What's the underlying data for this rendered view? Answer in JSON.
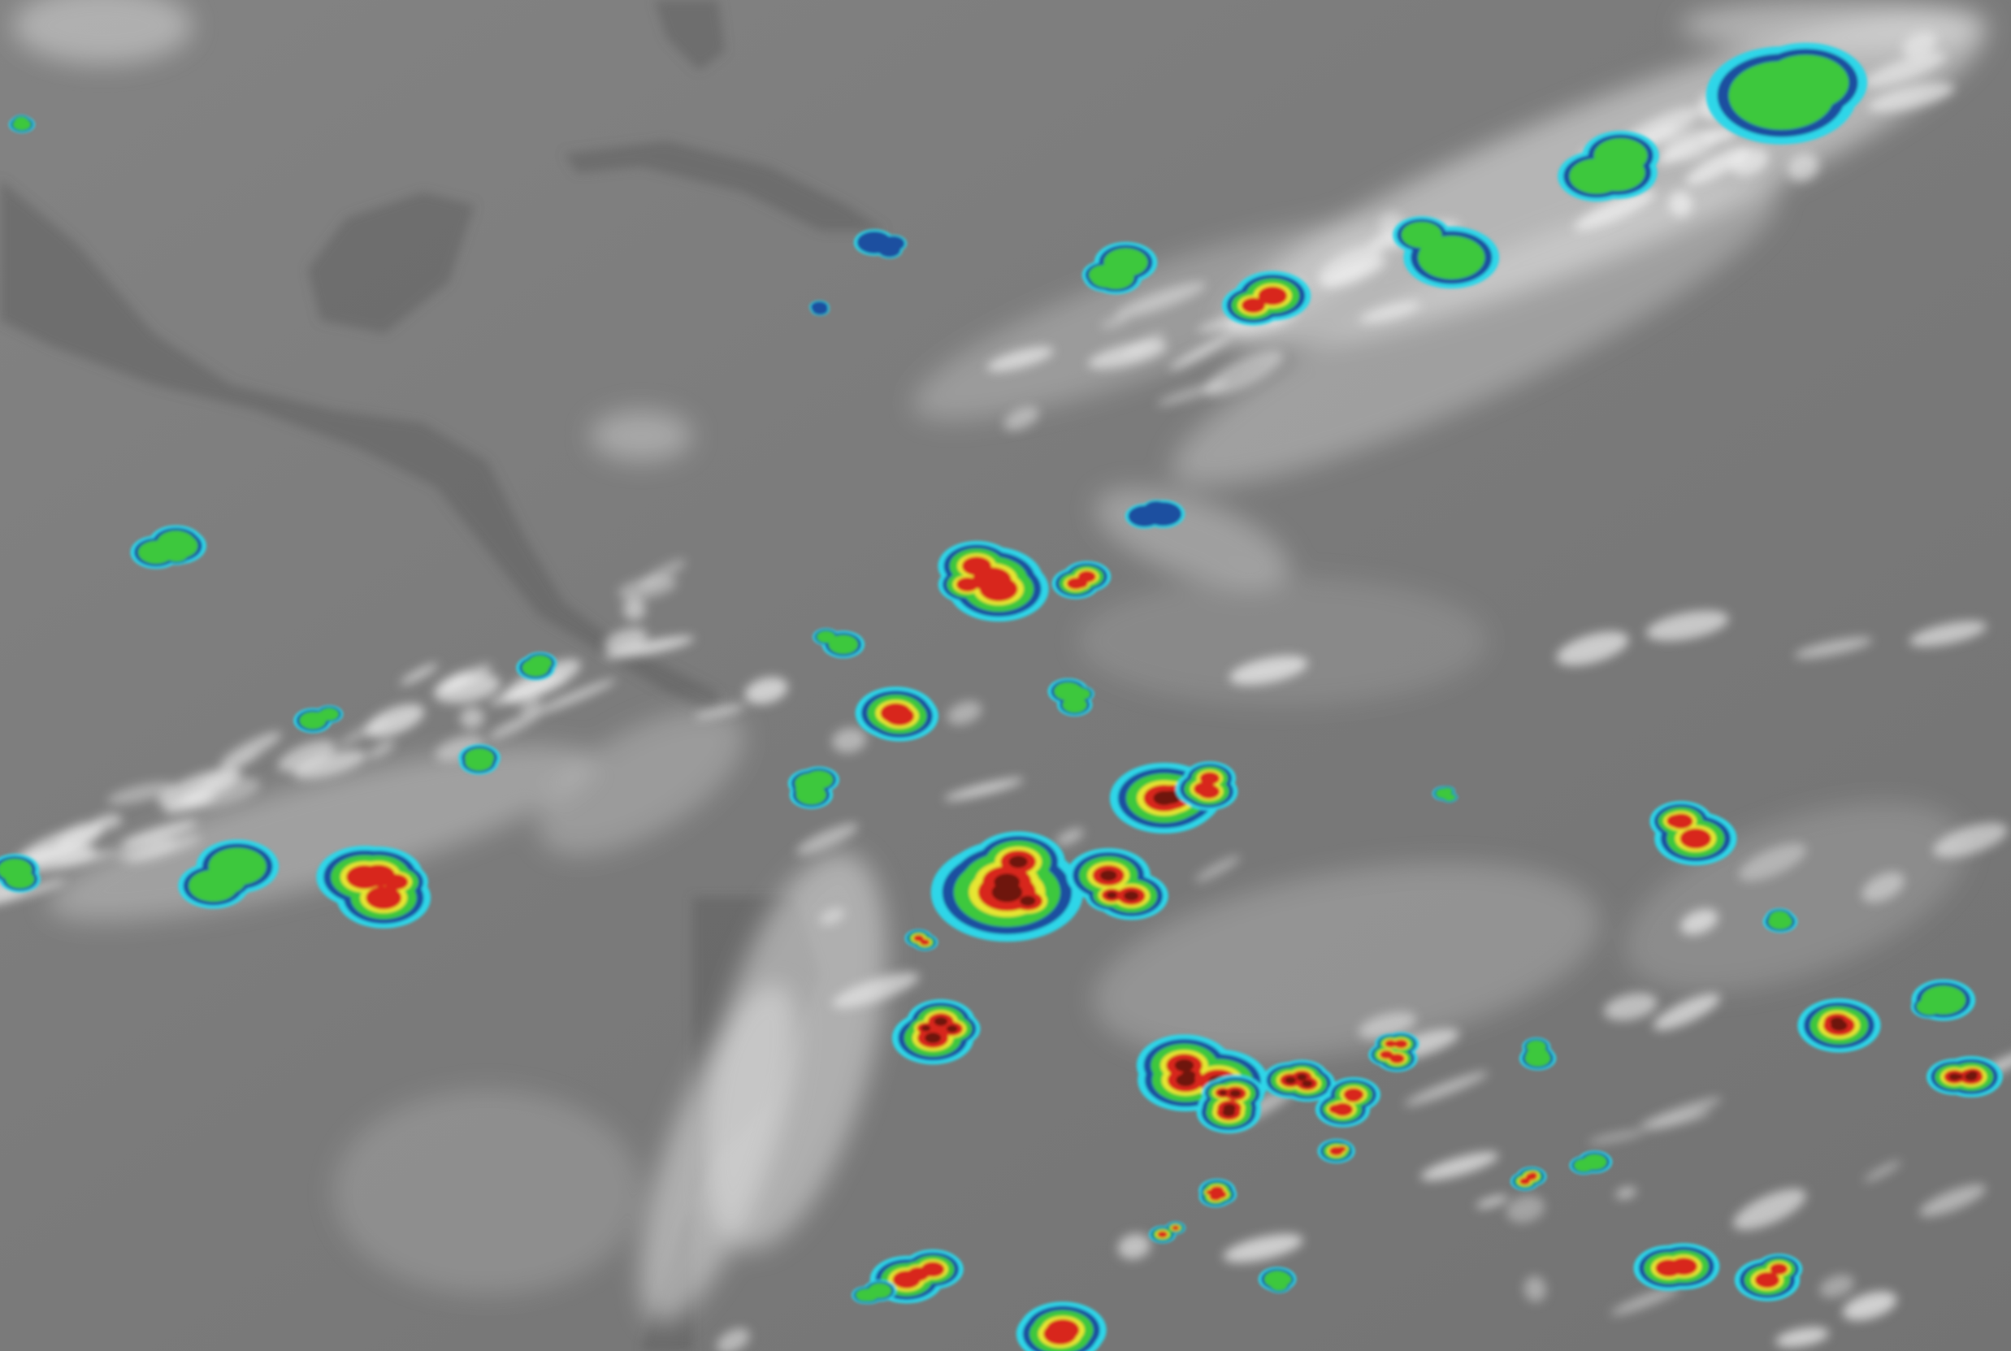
{
  "image": {
    "kind": "enhanced infrared satellite imagery",
    "palette": {
      "ocean": "#7b7b7b",
      "land": "#5e5e5e",
      "cold_cloud": "#e6e6e6",
      "cyan": "#2fd6e8",
      "blue": "#1a4fa0",
      "green": "#3cc83c",
      "yellow": "#e6e633",
      "red": "#d8261c",
      "dark_red": "#6e1410"
    }
  }
}
